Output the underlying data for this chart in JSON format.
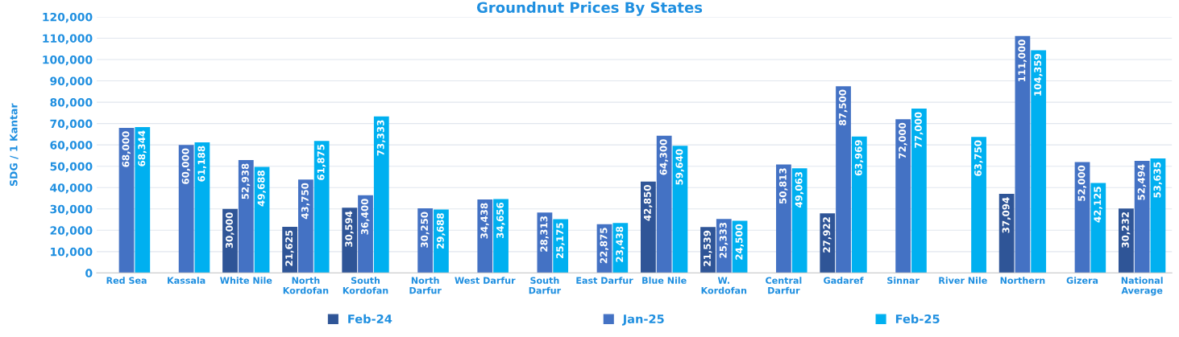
{
  "chart_data": {
    "type": "bar",
    "title": "Groundnut Prices By States",
    "ylabel": "SDG / 1 Kantar",
    "categories": [
      "Red Sea",
      "Kassala",
      "White Nile",
      "North\nKordofan",
      "South\nKordofan",
      "North\nDarfur",
      "West Darfur",
      "South\nDarfur",
      "East Darfur",
      "Blue Nile",
      "W.\nKordofan",
      "Central\nDarfur",
      "Gadaref",
      "Sinnar",
      "River Nile",
      "Northern",
      "Gizera",
      "National\nAverage"
    ],
    "series": [
      {
        "name": "Feb-24",
        "color": "#2f5597",
        "values": [
          null,
          null,
          30000,
          21625,
          30594,
          null,
          null,
          null,
          null,
          42850,
          21539,
          null,
          27922,
          null,
          null,
          37094,
          null,
          30232
        ],
        "value_labels": [
          null,
          null,
          "30,000",
          "21,625",
          "30,594",
          null,
          null,
          null,
          null,
          "42,850",
          "21,539",
          null,
          "27,922",
          null,
          null,
          "37,094",
          null,
          "30,232"
        ]
      },
      {
        "name": "Jan-25",
        "color": "#4472c4",
        "values": [
          68000,
          60000,
          52938,
          43750,
          36400,
          30250,
          34438,
          28313,
          22875,
          64300,
          25333,
          50813,
          87500,
          72000,
          null,
          111000,
          52000,
          52494
        ],
        "value_labels": [
          "68,000",
          "60,000",
          "52,938",
          "43,750",
          "36,400",
          "30,250",
          "34,438",
          "28,313",
          "22,875",
          "64,300",
          "25,333",
          "50,813",
          "87,500",
          "72,000",
          null,
          "111,000",
          "52,000",
          "52,494"
        ]
      },
      {
        "name": "Feb-25",
        "color": "#00b0f0",
        "values": [
          68344,
          61188,
          49688,
          61875,
          73333,
          29688,
          34656,
          25175,
          23438,
          59640,
          24500,
          49063,
          63969,
          77000,
          63750,
          104359,
          42125,
          53635
        ],
        "value_labels": [
          "68,344",
          "61,188",
          "49,688",
          "61,875",
          "73,333",
          "29,688",
          "34,656",
          "25,175",
          "23,438",
          "59,640",
          "24,500",
          "49,063",
          "63,969",
          "77,000",
          "63,750",
          "104,359",
          "42,125",
          "53,635"
        ]
      }
    ],
    "ylim": [
      0,
      120000
    ],
    "yticks": [
      0,
      {
        "value": 10000,
        "label": "10,000"
      },
      {
        "value": 20000,
        "label": "20,000"
      },
      {
        "value": 30000,
        "label": "30,000"
      },
      {
        "value": 40000,
        "label": "40,000"
      },
      {
        "value": 50000,
        "label": "50,000"
      },
      {
        "value": 60000,
        "label": "60,000"
      },
      {
        "value": 70000,
        "label": "70,000"
      },
      {
        "value": 80000,
        "label": "80,000"
      },
      {
        "value": 90000,
        "label": "90,000"
      },
      {
        "value": 100000,
        "label": "100,000"
      },
      {
        "value": 110000,
        "label": "110,000"
      },
      {
        "value": 120000,
        "label": "120,000"
      }
    ],
    "grid": "y",
    "legend": "bottom"
  }
}
